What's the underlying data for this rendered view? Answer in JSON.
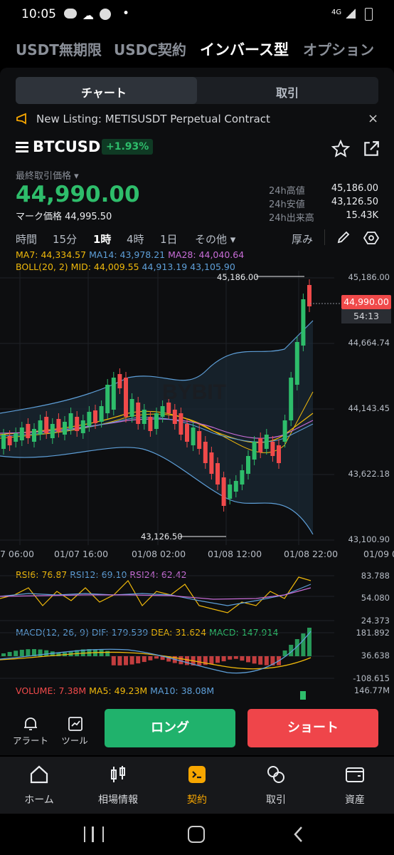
{
  "status_bar": {
    "time": "10:05",
    "net": "4G"
  },
  "top_nav": [
    "USDT無期限",
    "USDC契約",
    "インバース型",
    "オプション"
  ],
  "segment": {
    "chart": "チャート",
    "trade": "取引"
  },
  "banner": {
    "text": "New Listing: METISUSDT Perpetual Contract"
  },
  "ticker": {
    "symbol": "BTCUSD",
    "change": "+1.93%",
    "last_price_label": "最終取引価格",
    "last_price": "44,990.00",
    "mark_label": "マーク価格",
    "mark_price": "44,995.50",
    "high_label": "24h高値",
    "high": "45,186.00",
    "low_label": "24h安値",
    "low": "43,126.50",
    "vol_label": "24h出来高",
    "vol": "15.43K"
  },
  "timeframes": {
    "items": [
      "時間",
      "15分",
      "1時",
      "4時",
      "1日",
      "その他"
    ],
    "active": "1時",
    "depth": "厚み"
  },
  "indicators": {
    "ma7": "MA7: 44,334.57",
    "ma14": "MA14: 43,978.21",
    "ma28": "MA28: 44,040.64",
    "boll": "BOLL(20, 2) MID: 44,009.55",
    "boll_up": "44,913.19",
    "boll_low": "43,105.90",
    "rsi6": "RSI6: 76.87",
    "rsi12": "RSI12: 69.10",
    "rsi24": "RSI24: 62.42",
    "macd": "MACD(12, 26, 9)",
    "dif": "DIF: 179.539",
    "dea": "DEA: 31.624",
    "macdv": "MACD: 147.914",
    "volume": "VOLUME: 7.38M",
    "ma5": "MA5: 49.23M",
    "ma10": "MA10: 38.08M"
  },
  "price_axis": [
    "45,186.00",
    "44,664.74",
    "44,143.45",
    "43,622.18",
    "43,100.90"
  ],
  "current_price_tag": {
    "price": "44,990.00",
    "countdown": "54:13"
  },
  "marks": {
    "high": "45,186.00",
    "low": "43,126.50"
  },
  "time_axis": [
    "7 06:00",
    "01/07 16:00",
    "01/08 02:00",
    "01/08 12:00",
    "01/08 22:00",
    "01/09 0"
  ],
  "rsi_axis": [
    "83.788",
    "54.080",
    "24.373"
  ],
  "macd_axis": [
    "181.892",
    "36.638",
    "-108.615"
  ],
  "vol_axis": [
    "146.77M"
  ],
  "tools": {
    "alert": "アラート",
    "tool": "ツール"
  },
  "actions": {
    "long": "ロング",
    "short": "ショート"
  },
  "bottom_nav": [
    "ホーム",
    "相場情報",
    "契約",
    "取引",
    "資産"
  ],
  "colors": {
    "up": "#2ebd6b",
    "down": "#f04a4a",
    "accent": "#f7a600",
    "ma7": "#f0b90b",
    "ma14": "#5e9fd8",
    "ma28": "#c86dd7"
  }
}
